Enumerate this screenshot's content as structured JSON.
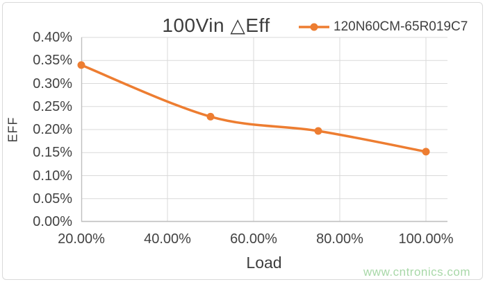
{
  "chart_data": {
    "type": "line",
    "title": "100Vin △Eff",
    "xlabel": "Load",
    "ylabel": "EFF",
    "grid": true,
    "legend_position": "top-right",
    "xlim": [
      20,
      105
    ],
    "ylim": [
      0,
      0.4
    ],
    "grid_color": "#D9D9D9",
    "axis_color": "#BFBFBF",
    "x_ticks": [
      {
        "value": 20,
        "label": "20.00%"
      },
      {
        "value": 40,
        "label": "40.00%"
      },
      {
        "value": 60,
        "label": "60.00%"
      },
      {
        "value": 80,
        "label": "80.00%"
      },
      {
        "value": 100,
        "label": "100.00%"
      }
    ],
    "y_ticks": [
      {
        "value": 0.4,
        "label": "0.40%"
      },
      {
        "value": 0.35,
        "label": "0.35%"
      },
      {
        "value": 0.3,
        "label": "0.30%"
      },
      {
        "value": 0.25,
        "label": "0.25%"
      },
      {
        "value": 0.2,
        "label": "0.20%"
      },
      {
        "value": 0.15,
        "label": "0.15%"
      },
      {
        "value": 0.1,
        "label": "0.10%"
      },
      {
        "value": 0.05,
        "label": "0.05%"
      },
      {
        "value": 0.0,
        "label": "0.00%"
      }
    ],
    "series": [
      {
        "name": "120N60CM-65R019C7",
        "color": "#ED7D31",
        "marker": "circle",
        "x": [
          20,
          50,
          75,
          100
        ],
        "y": [
          0.34,
          0.228,
          0.197,
          0.152
        ],
        "y_unit": "%"
      }
    ]
  },
  "watermark": {
    "text": "www.cntronics.com",
    "color": "#A8D8A8"
  }
}
